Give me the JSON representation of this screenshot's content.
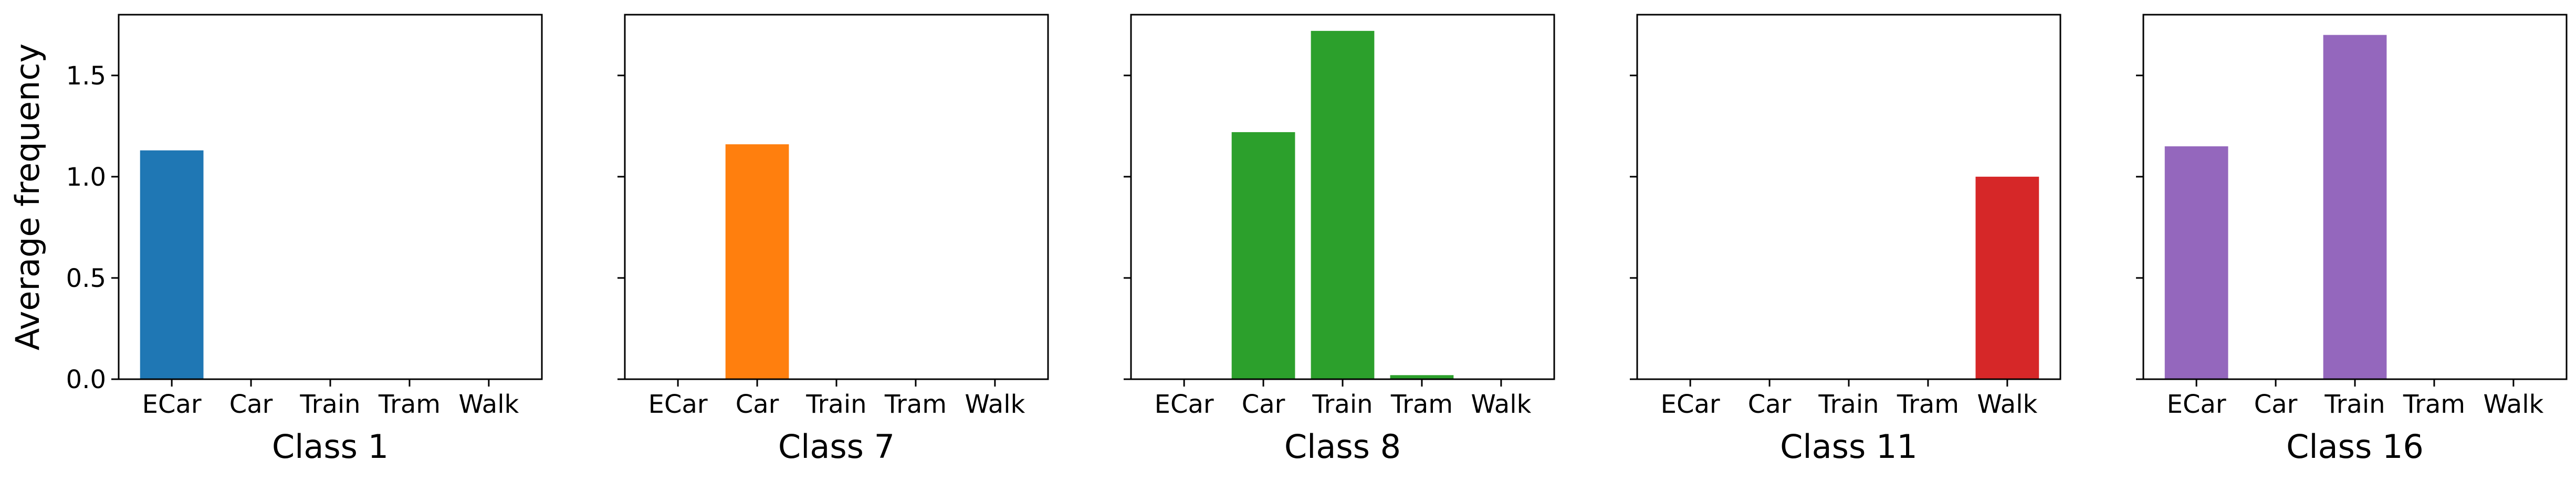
{
  "chart_data": [
    {
      "type": "bar",
      "xlabel": "Class 1",
      "ylabel": "Average frequency",
      "categories": [
        "ECar",
        "Car",
        "Train",
        "Tram",
        "Walk"
      ],
      "values": [
        1.13,
        0,
        0,
        0,
        0
      ],
      "color": "#1f77b4",
      "ylim": [
        0,
        1.8
      ],
      "yticks": [
        "0.0",
        "0.5",
        "1.0",
        "1.5"
      ]
    },
    {
      "type": "bar",
      "xlabel": "Class 7",
      "categories": [
        "ECar",
        "Car",
        "Train",
        "Tram",
        "Walk"
      ],
      "values": [
        0,
        1.16,
        0,
        0,
        0
      ],
      "color": "#ff7f0e",
      "ylim": [
        0,
        1.8
      ]
    },
    {
      "type": "bar",
      "xlabel": "Class 8",
      "categories": [
        "ECar",
        "Car",
        "Train",
        "Tram",
        "Walk"
      ],
      "values": [
        0,
        1.22,
        1.72,
        0.02,
        0
      ],
      "color": "#2ca02c",
      "ylim": [
        0,
        1.8
      ]
    },
    {
      "type": "bar",
      "xlabel": "Class 11",
      "categories": [
        "ECar",
        "Car",
        "Train",
        "Tram",
        "Walk"
      ],
      "values": [
        0,
        0,
        0,
        0,
        1.0
      ],
      "color": "#d62728",
      "ylim": [
        0,
        1.8
      ]
    },
    {
      "type": "bar",
      "xlabel": "Class 16",
      "categories": [
        "ECar",
        "Car",
        "Train",
        "Tram",
        "Walk"
      ],
      "values": [
        1.15,
        0,
        1.7,
        0,
        0
      ],
      "color": "#9467bd",
      "ylim": [
        0,
        1.8
      ]
    }
  ]
}
